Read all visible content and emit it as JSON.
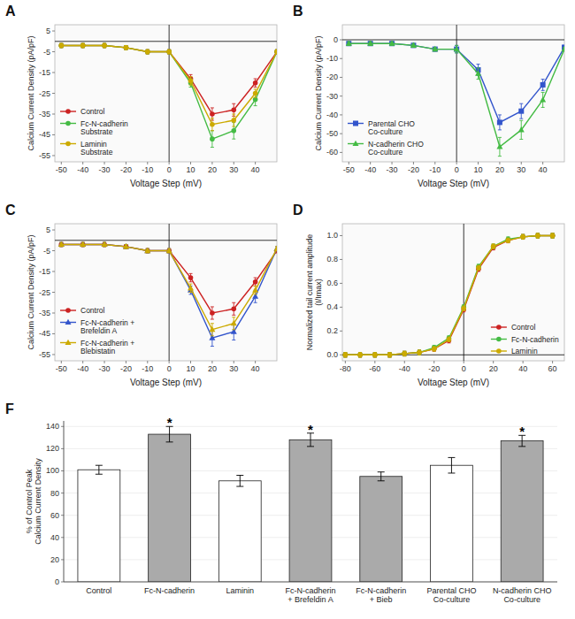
{
  "chart_data": [
    {
      "type": "line",
      "title": "A",
      "xlabel": "Voltage Step (mV)",
      "ylabel": "Calcium Current Density (pA/pF)",
      "xlim": [
        -53,
        50
      ],
      "ylim": [
        -58,
        8
      ],
      "xticks": [
        -50,
        -40,
        -30,
        -20,
        -10,
        0,
        10,
        20,
        30,
        40
      ],
      "yticks": [
        5,
        -5,
        -15,
        -25,
        -35,
        -45,
        -55
      ],
      "x": [
        -50,
        -40,
        -30,
        -20,
        -10,
        0,
        10,
        20,
        30,
        40,
        50
      ],
      "legend": "lower left",
      "series": [
        {
          "name": "Control",
          "color": "#cc2222",
          "marker": "circle",
          "values": [
            -2,
            -2,
            -2,
            -3,
            -5,
            -5,
            -18,
            -35,
            -33,
            -20,
            -5
          ],
          "errors": [
            1,
            1,
            1,
            1,
            1,
            1,
            2,
            3,
            3,
            2,
            1
          ]
        },
        {
          "name": "Fc-N-cadherin\nSubstrate",
          "color": "#44bb44",
          "marker": "circle",
          "values": [
            -2,
            -2,
            -2,
            -3,
            -5,
            -5,
            -20,
            -47,
            -43,
            -28,
            -5
          ],
          "errors": [
            1,
            1,
            1,
            1,
            1,
            1,
            2,
            4,
            4,
            3,
            1
          ]
        },
        {
          "name": "Laminin\nSubstrate",
          "color": "#ccaa00",
          "marker": "circle",
          "values": [
            -2,
            -2,
            -2,
            -3,
            -5,
            -5,
            -19,
            -40,
            -38,
            -25,
            -5
          ],
          "errors": [
            1,
            1,
            1,
            1,
            1,
            1,
            2,
            3,
            3,
            2,
            1
          ]
        }
      ]
    },
    {
      "type": "line",
      "title": "B",
      "xlabel": "Voltage Step (mV)",
      "ylabel": "Calcium Current Density (pA/pF)",
      "xlim": [
        -53,
        50
      ],
      "ylim": [
        -65,
        8
      ],
      "xticks": [
        -50,
        -40,
        -30,
        -20,
        -10,
        0,
        10,
        20,
        30,
        40
      ],
      "yticks": [
        0,
        -10,
        -20,
        -30,
        -40,
        -50,
        -60
      ],
      "x": [
        -50,
        -40,
        -30,
        -20,
        -10,
        0,
        10,
        20,
        30,
        40,
        50
      ],
      "legend": "lower left",
      "series": [
        {
          "name": "Parental CHO\nCo-culture",
          "color": "#3355cc",
          "marker": "square",
          "values": [
            -2,
            -2,
            -2,
            -3,
            -5,
            -5,
            -16,
            -44,
            -38,
            -24,
            -4
          ],
          "errors": [
            1,
            1,
            1,
            1,
            1,
            2,
            3,
            4,
            4,
            3,
            1
          ]
        },
        {
          "name": "N-cadherin CHO\nCo-culture",
          "color": "#44bb44",
          "marker": "triangle",
          "values": [
            -2,
            -2,
            -2,
            -3,
            -5,
            -5,
            -18,
            -57,
            -48,
            -32,
            -5
          ],
          "errors": [
            1,
            1,
            1,
            1,
            1,
            2,
            3,
            5,
            5,
            4,
            1
          ]
        }
      ]
    },
    {
      "type": "line",
      "title": "C",
      "xlabel": "Voltage Step (mV)",
      "ylabel": "Calcium Current Density (pA/pF)",
      "xlim": [
        -53,
        50
      ],
      "ylim": [
        -58,
        8
      ],
      "xticks": [
        -50,
        -40,
        -30,
        -20,
        -10,
        0,
        10,
        20,
        30,
        40
      ],
      "yticks": [
        5,
        -5,
        -15,
        -25,
        -35,
        -45,
        -55
      ],
      "x": [
        -50,
        -40,
        -30,
        -20,
        -10,
        0,
        10,
        20,
        30,
        40,
        50
      ],
      "legend": "lower left",
      "series": [
        {
          "name": "Control",
          "color": "#cc2222",
          "marker": "circle",
          "values": [
            -2,
            -2,
            -2,
            -3,
            -5,
            -5,
            -18,
            -35,
            -33,
            -20,
            -5
          ],
          "errors": [
            1,
            1,
            1,
            1,
            1,
            1,
            2,
            3,
            3,
            2,
            1
          ]
        },
        {
          "name": "Fc-N-cadherin +\nBrefeldin A",
          "color": "#3355cc",
          "marker": "triangle",
          "values": [
            -2,
            -2,
            -2,
            -3,
            -5,
            -5,
            -24,
            -47,
            -44,
            -27,
            -4
          ],
          "errors": [
            1,
            1,
            1,
            1,
            1,
            1,
            2,
            4,
            4,
            3,
            1
          ]
        },
        {
          "name": "Fc-N-cadherin +\nBlebistatin",
          "color": "#ccaa00",
          "marker": "triangle",
          "values": [
            -2,
            -2,
            -2,
            -3,
            -5,
            -5,
            -23,
            -43,
            -40,
            -24,
            -4
          ],
          "errors": [
            1,
            1,
            1,
            1,
            1,
            1,
            2,
            3,
            3,
            2,
            1
          ]
        }
      ]
    },
    {
      "type": "line",
      "title": "D",
      "xlabel": "Voltage Step (mV)",
      "ylabel": "Normalized tail current amplitude\n(I/Imax)",
      "xlim": [
        -82,
        68
      ],
      "ylim": [
        -0.05,
        1.1
      ],
      "xticks": [
        -80,
        -60,
        -40,
        -20,
        0,
        20,
        40,
        60
      ],
      "yticks": [
        {
          "value": 0,
          "label": "0.0"
        },
        0.2,
        0.4,
        0.6,
        0.8,
        {
          "value": 1,
          "label": "1.0"
        }
      ],
      "x": [
        -80,
        -70,
        -60,
        -50,
        -40,
        -30,
        -20,
        -10,
        0,
        10,
        20,
        30,
        40,
        50,
        60
      ],
      "legend": "lower right",
      "series": [
        {
          "name": "Control",
          "color": "#cc2222",
          "marker": "circle",
          "values": [
            0.0,
            0.0,
            0.0,
            0.0,
            0.01,
            0.02,
            0.05,
            0.12,
            0.38,
            0.72,
            0.9,
            0.96,
            0.99,
            1.0,
            1.0
          ],
          "errors": [
            0.02,
            0.02,
            0.02,
            0.02,
            0.02,
            0.02,
            0.02,
            0.02,
            0.02,
            0.02,
            0.02,
            0.02,
            0.02,
            0.02,
            0.02
          ]
        },
        {
          "name": "Fc-N-cadherin",
          "color": "#44bb44",
          "marker": "circle",
          "values": [
            0.0,
            0.0,
            0.0,
            0.0,
            0.01,
            0.02,
            0.06,
            0.14,
            0.4,
            0.74,
            0.91,
            0.97,
            0.99,
            1.0,
            1.0
          ],
          "errors": [
            0.02,
            0.02,
            0.02,
            0.02,
            0.02,
            0.02,
            0.02,
            0.02,
            0.02,
            0.02,
            0.02,
            0.02,
            0.02,
            0.02,
            0.02
          ]
        },
        {
          "name": "Laminin",
          "color": "#ccaa00",
          "marker": "circle",
          "values": [
            0.0,
            0.0,
            0.0,
            0.0,
            0.01,
            0.02,
            0.05,
            0.13,
            0.39,
            0.73,
            0.91,
            0.96,
            0.99,
            1.0,
            1.0
          ],
          "errors": [
            0.02,
            0.02,
            0.02,
            0.02,
            0.02,
            0.02,
            0.02,
            0.02,
            0.02,
            0.02,
            0.02,
            0.02,
            0.02,
            0.02,
            0.02
          ]
        }
      ]
    },
    {
      "type": "bar",
      "title": "F",
      "ylabel": "% of Control Peak\nCalcium Current Density",
      "ylim": [
        0,
        145
      ],
      "yticks": [
        0,
        20,
        40,
        60,
        80,
        100,
        120,
        140
      ],
      "categories": [
        "Control",
        "Fc-N-cadherin",
        "Laminin",
        "Fc-N-cadherin\n+ Brefeldin A",
        "Fc-N-cadherin\n+ Bieb",
        "Parental CHO\nCo-culture",
        "N-cadherin CHO\nCo-culture"
      ],
      "values": [
        101,
        133,
        91,
        128,
        95,
        105,
        127
      ],
      "errors": [
        4,
        7,
        5,
        6,
        4,
        7,
        5
      ],
      "colors": [
        "#ffffff",
        "#aaaaaa",
        "#ffffff",
        "#aaaaaa",
        "#aaaaaa",
        "#ffffff",
        "#aaaaaa"
      ],
      "annotations": [
        {
          "text": "*",
          "index": 1
        },
        {
          "text": "*",
          "index": 3
        },
        {
          "text": "*",
          "index": 6
        }
      ]
    }
  ]
}
